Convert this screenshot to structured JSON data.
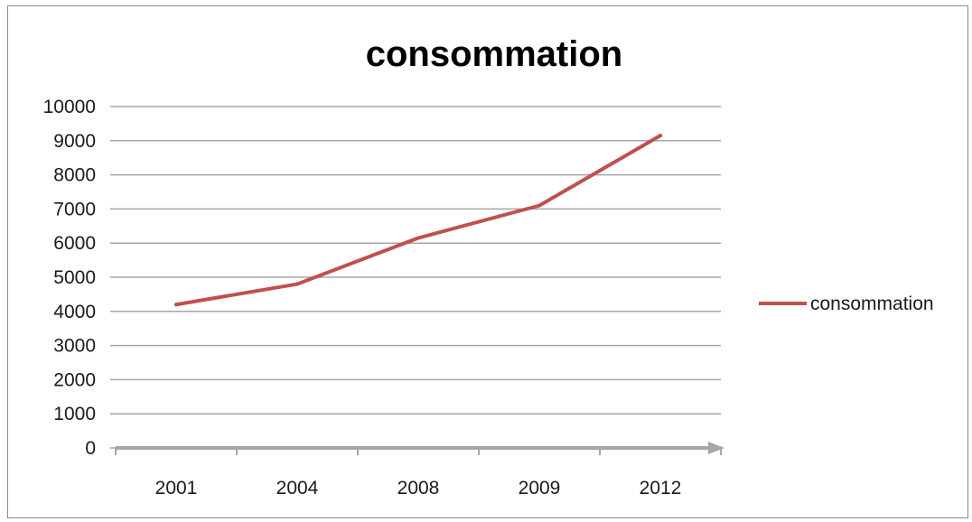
{
  "chart_data": {
    "type": "line",
    "title": "consommation",
    "categories": [
      "2001",
      "2004",
      "2008",
      "2009",
      "2012"
    ],
    "series": [
      {
        "name": "consommation",
        "values": [
          4200,
          4800,
          6150,
          7100,
          9150
        ],
        "color": "#c0504d"
      }
    ],
    "ylim": [
      0,
      10000
    ],
    "yticks": [
      "0",
      "1000",
      "2000",
      "3000",
      "4000",
      "5000",
      "6000",
      "7000",
      "8000",
      "9000",
      "10000"
    ],
    "grid": true,
    "legend_position": "right",
    "gridline_color": "#a6a6a6",
    "axis_color": "#a6a6a6"
  }
}
